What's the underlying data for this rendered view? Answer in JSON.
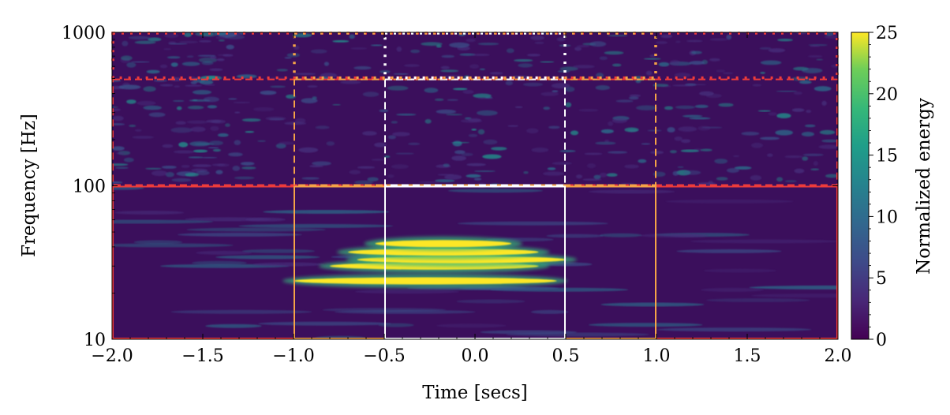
{
  "chart_data": {
    "type": "heatmap",
    "title": "",
    "xlabel": "Time [secs]",
    "ylabel": "Frequency [Hz]",
    "xlim": [
      -2.0,
      2.0
    ],
    "ylim": [
      10,
      1000
    ],
    "yscale": "log",
    "x_ticks": [
      -2.0,
      -1.5,
      -1.0,
      -0.5,
      0.0,
      0.5,
      1.0,
      1.5,
      2.0
    ],
    "x_tick_labels": [
      "−2.0",
      "−1.5",
      "−1.0",
      "−0.5",
      "0.0",
      "0.5",
      "1.0",
      "1.5",
      "2.0"
    ],
    "y_ticks": [
      10,
      100,
      1000
    ],
    "y_tick_labels": [
      "10",
      "100",
      "1000"
    ],
    "colormap": "viridis",
    "colorbar": {
      "label": "Normalized energy",
      "range": [
        0,
        25
      ],
      "ticks": [
        0,
        5,
        10,
        15,
        20,
        25
      ],
      "tick_labels": [
        "0",
        "5",
        "10",
        "15",
        "20",
        "25"
      ]
    },
    "high_energy_tracks": [
      {
        "x": [
          -1.0,
          0.45
        ],
        "y": 24
      },
      {
        "x": [
          -0.8,
          0.35
        ],
        "y": 30
      },
      {
        "x": [
          -0.65,
          0.5
        ],
        "y": 33
      },
      {
        "x": [
          -0.7,
          0.35
        ],
        "y": 37
      },
      {
        "x": [
          -0.55,
          0.2
        ],
        "y": 42
      }
    ],
    "windows": [
      {
        "style": "solid",
        "color": "#ee3b3b",
        "x": [
          -2.0,
          2.0
        ],
        "y": [
          10,
          100
        ]
      },
      {
        "style": "solid",
        "color": "#f5a347",
        "x": [
          -1.0,
          1.0
        ],
        "y": [
          10,
          100
        ]
      },
      {
        "style": "solid",
        "color": "#ffffff",
        "x": [
          -0.5,
          0.5
        ],
        "y": [
          10,
          100
        ]
      },
      {
        "style": "dashed",
        "color": "#ee3b3b",
        "x": [
          -2.0,
          2.0
        ],
        "y": [
          100,
          500
        ]
      },
      {
        "style": "dashed",
        "color": "#f5a347",
        "x": [
          -1.0,
          1.0
        ],
        "y": [
          100,
          500
        ]
      },
      {
        "style": "dashed",
        "color": "#ffffff",
        "x": [
          -0.5,
          0.5
        ],
        "y": [
          100,
          500
        ]
      },
      {
        "style": "dotted",
        "color": "#ee3b3b",
        "x": [
          -2.0,
          2.0
        ],
        "y": [
          500,
          1000
        ]
      },
      {
        "style": "dotted",
        "color": "#f5a347",
        "x": [
          -1.0,
          1.0
        ],
        "y": [
          500,
          1000
        ]
      },
      {
        "style": "dotted",
        "color": "#ffffff",
        "x": [
          -0.5,
          0.5
        ],
        "y": [
          500,
          1000
        ]
      }
    ]
  }
}
